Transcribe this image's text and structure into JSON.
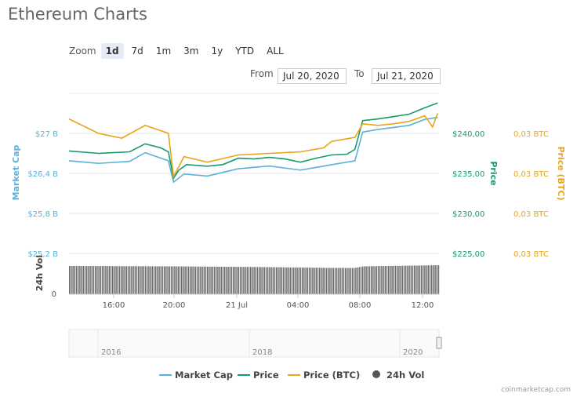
{
  "title": "Ethereum Charts",
  "zoom": {
    "label": "Zoom",
    "buttons": [
      "1d",
      "7d",
      "1m",
      "3m",
      "1y",
      "YTD",
      "ALL"
    ],
    "active": "1d"
  },
  "range": {
    "from_label": "From",
    "from": "Jul 20, 2020",
    "to_label": "To",
    "to": "Jul 21, 2020"
  },
  "footer": "coinmarketcap.com",
  "chart_data": {
    "type": "line",
    "x_axis": {
      "ticks": [
        "16:00",
        "20:00",
        "21 Jul",
        "04:00",
        "08:00",
        "12:00"
      ],
      "range": [
        "07-20 13:06",
        "07-21 12:55"
      ]
    },
    "left_axis": {
      "title": "Market Cap",
      "ticks": [
        "$27 B",
        "$26,4 B",
        "$25,8 B",
        "$25,2 B"
      ],
      "ylim": [
        25.2,
        27.6
      ],
      "color": "#5fb0d8"
    },
    "price_axis": {
      "title": "Price",
      "ticks": [
        "$240,00",
        "$235,00",
        "$230,00",
        "$225,00"
      ],
      "ylim": [
        225,
        245
      ],
      "color": "#159a6d"
    },
    "btc_axis": {
      "title": "Price (BTC)",
      "ticks": [
        "0,03 BTC",
        "0,03 BTC",
        "0,03 BTC",
        "0,03 BTC"
      ],
      "ylim": [
        0.0285,
        0.0305
      ],
      "color": "#e9a519"
    },
    "vol_axis": {
      "title": "24h Vol",
      "ticks": [
        "0"
      ]
    },
    "grid": true,
    "legend": {
      "placement": "bottom",
      "items": [
        {
          "name": "Market Cap",
          "color": "#5fb0d8"
        },
        {
          "name": "Price",
          "color": "#159a6d"
        },
        {
          "name": "Price (BTC)",
          "color": "#e9a519"
        },
        {
          "name": "24h Vol",
          "color": "#555555"
        }
      ]
    },
    "series": [
      {
        "name": "Market Cap",
        "axis": "left_axis",
        "points": [
          [
            "07-20 13:06",
            26.59
          ],
          [
            "07-20 15:00",
            26.55
          ],
          [
            "07-20 17:00",
            26.58
          ],
          [
            "07-20 18:00",
            26.71
          ],
          [
            "07-20 19:30",
            26.59
          ],
          [
            "07-20 19:50",
            26.27
          ],
          [
            "07-20 20:30",
            26.39
          ],
          [
            "07-20 22:00",
            26.36
          ],
          [
            "07-21 00:00",
            26.47
          ],
          [
            "07-21 02:00",
            26.51
          ],
          [
            "07-21 04:00",
            26.45
          ],
          [
            "07-21 06:00",
            26.53
          ],
          [
            "07-21 07:30",
            26.59
          ],
          [
            "07-21 08:00",
            27.02
          ],
          [
            "07-21 09:00",
            27.06
          ],
          [
            "07-21 10:00",
            27.09
          ],
          [
            "07-21 11:00",
            27.12
          ],
          [
            "07-21 12:00",
            27.21
          ],
          [
            "07-21 12:50",
            27.24
          ]
        ]
      },
      {
        "name": "Price",
        "axis": "price_axis",
        "points": [
          [
            "07-20 13:06",
            237.8
          ],
          [
            "07-20 15:00",
            237.5
          ],
          [
            "07-20 17:00",
            237.7
          ],
          [
            "07-20 18:00",
            238.7
          ],
          [
            "07-20 19:00",
            238.2
          ],
          [
            "07-20 19:30",
            237.7
          ],
          [
            "07-20 19:50",
            234.4
          ],
          [
            "07-20 20:10",
            235.4
          ],
          [
            "07-20 20:40",
            236.1
          ],
          [
            "07-20 22:00",
            235.9
          ],
          [
            "07-20 23:00",
            236.1
          ],
          [
            "07-21 00:00",
            236.9
          ],
          [
            "07-21 01:00",
            236.8
          ],
          [
            "07-21 02:00",
            237.0
          ],
          [
            "07-21 03:00",
            236.8
          ],
          [
            "07-21 04:00",
            236.4
          ],
          [
            "07-21 05:00",
            236.9
          ],
          [
            "07-21 06:00",
            237.3
          ],
          [
            "07-21 07:00",
            237.4
          ],
          [
            "07-21 07:30",
            238.0
          ],
          [
            "07-21 08:00",
            241.6
          ],
          [
            "07-21 09:00",
            241.8
          ],
          [
            "07-21 10:00",
            242.1
          ],
          [
            "07-21 11:00",
            242.4
          ],
          [
            "07-21 12:00",
            243.2
          ],
          [
            "07-21 12:50",
            243.8
          ]
        ]
      },
      {
        "name": "Price (BTC)",
        "axis": "btc_axis",
        "points": [
          [
            "07-20 13:06",
            0.03018
          ],
          [
            "07-20 15:00",
            0.03
          ],
          [
            "07-20 16:30",
            0.02994
          ],
          [
            "07-20 18:00",
            0.0301
          ],
          [
            "07-20 19:30",
            0.03
          ],
          [
            "07-20 19:50",
            0.02946
          ],
          [
            "07-20 20:30",
            0.02971
          ],
          [
            "07-20 22:00",
            0.02964
          ],
          [
            "07-21 00:00",
            0.02973
          ],
          [
            "07-21 02:00",
            0.02975
          ],
          [
            "07-21 04:00",
            0.02977
          ],
          [
            "07-21 05:30",
            0.02982
          ],
          [
            "07-21 06:00",
            0.0299
          ],
          [
            "07-21 07:30",
            0.02995
          ],
          [
            "07-21 08:00",
            0.03012
          ],
          [
            "07-21 09:00",
            0.0301
          ],
          [
            "07-21 10:00",
            0.03012
          ],
          [
            "07-21 11:00",
            0.03015
          ],
          [
            "07-21 12:00",
            0.03022
          ],
          [
            "07-21 12:30",
            0.03008
          ],
          [
            "07-21 12:50",
            0.03025
          ]
        ]
      },
      {
        "name": "24h Vol",
        "type": "bar",
        "relative_levels": [
          [
            "07-20 13:06",
            0.72
          ],
          [
            "07-20 20:00",
            0.71
          ],
          [
            "07-21 02:00",
            0.69
          ],
          [
            "07-21 06:00",
            0.67
          ],
          [
            "07-21 07:30",
            0.67
          ],
          [
            "07-21 08:00",
            0.71
          ],
          [
            "07-21 12:55",
            0.74
          ]
        ]
      }
    ],
    "navigator": {
      "labels": [
        "2016",
        "2018",
        "2020"
      ]
    }
  }
}
